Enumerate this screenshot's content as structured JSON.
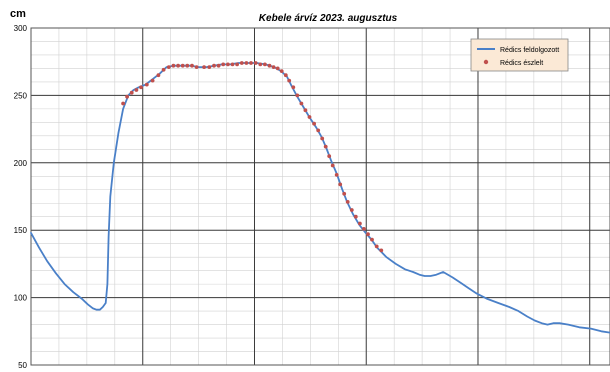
{
  "chart_data": {
    "type": "line",
    "title": "Kebele árvíz 2023. augusztus",
    "ylabel": "cm",
    "xlabel": "",
    "ylim": [
      50,
      300
    ],
    "yticks": [
      50,
      100,
      150,
      200,
      250,
      300
    ],
    "xlim": [
      0,
      100
    ],
    "x_major_ticks": [
      0,
      19.3,
      38.6,
      57.9,
      77.2,
      96.5
    ],
    "x_tick_labels": [
      "",
      "",
      "",
      "",
      "",
      ""
    ],
    "grid": true,
    "legend_position": "top-right",
    "series": [
      {
        "name": "Rédics feldolgozott",
        "kind": "line",
        "color": "#4a80c8",
        "points": [
          [
            0.0,
            148
          ],
          [
            1.4,
            137
          ],
          [
            2.8,
            127
          ],
          [
            4.3,
            118
          ],
          [
            5.8,
            110
          ],
          [
            7.3,
            104
          ],
          [
            8.8,
            99
          ],
          [
            9.8,
            95
          ],
          [
            10.7,
            92
          ],
          [
            11.3,
            91
          ],
          [
            11.9,
            91
          ],
          [
            12.4,
            93
          ],
          [
            12.9,
            96
          ],
          [
            13.2,
            110
          ],
          [
            13.4,
            145
          ],
          [
            13.7,
            175
          ],
          [
            14.3,
            200
          ],
          [
            15.1,
            222
          ],
          [
            15.9,
            240
          ],
          [
            16.8,
            250
          ],
          [
            17.7,
            254
          ],
          [
            18.6,
            256
          ],
          [
            19.8,
            258
          ],
          [
            21.0,
            262
          ],
          [
            22.2,
            266
          ],
          [
            23.4,
            271
          ],
          [
            24.6,
            272
          ],
          [
            26.3,
            272
          ],
          [
            27.7,
            272
          ],
          [
            29.0,
            271
          ],
          [
            30.3,
            271
          ],
          [
            31.6,
            272
          ],
          [
            33.0,
            273
          ],
          [
            34.4,
            273
          ],
          [
            35.8,
            274
          ],
          [
            37.5,
            274
          ],
          [
            39.0,
            274
          ],
          [
            40.5,
            273
          ],
          [
            42.0,
            271
          ],
          [
            43.2,
            268
          ],
          [
            44.2,
            264
          ],
          [
            45.0,
            257
          ],
          [
            46.0,
            249
          ],
          [
            47.1,
            241
          ],
          [
            48.2,
            233
          ],
          [
            49.3,
            226
          ],
          [
            50.2,
            219
          ],
          [
            51.0,
            211
          ],
          [
            51.8,
            202
          ],
          [
            52.8,
            192
          ],
          [
            53.7,
            181
          ],
          [
            54.6,
            171
          ],
          [
            55.6,
            162
          ],
          [
            56.7,
            154
          ],
          [
            57.8,
            148
          ],
          [
            58.8,
            143
          ],
          [
            59.8,
            137
          ],
          [
            61.4,
            130
          ],
          [
            63.0,
            125
          ],
          [
            64.6,
            121
          ],
          [
            66.0,
            119
          ],
          [
            67.1,
            117
          ],
          [
            68.0,
            116
          ],
          [
            69.0,
            116
          ],
          [
            70.0,
            117
          ],
          [
            71.2,
            119
          ],
          [
            72.8,
            115
          ],
          [
            74.2,
            111
          ],
          [
            75.6,
            107
          ],
          [
            77.0,
            103
          ],
          [
            78.8,
            99
          ],
          [
            80.7,
            96
          ],
          [
            82.6,
            93
          ],
          [
            84.2,
            90
          ],
          [
            85.7,
            86
          ],
          [
            87.0,
            83
          ],
          [
            88.2,
            81
          ],
          [
            89.2,
            80
          ],
          [
            90.2,
            81
          ],
          [
            91.3,
            81
          ],
          [
            92.8,
            80
          ],
          [
            94.7,
            78
          ],
          [
            96.7,
            77
          ],
          [
            98.5,
            75
          ],
          [
            100.0,
            74
          ]
        ]
      },
      {
        "name": "Rédics észlelt",
        "kind": "markers",
        "color": "#c0504d",
        "points": [
          [
            15.9,
            244
          ],
          [
            16.6,
            249
          ],
          [
            17.4,
            252
          ],
          [
            18.2,
            254
          ],
          [
            19.0,
            256
          ],
          [
            20.0,
            258
          ],
          [
            21.0,
            261
          ],
          [
            22.0,
            265
          ],
          [
            22.9,
            269
          ],
          [
            23.8,
            271
          ],
          [
            24.6,
            272
          ],
          [
            25.4,
            272
          ],
          [
            26.2,
            272
          ],
          [
            27.0,
            272
          ],
          [
            27.8,
            272
          ],
          [
            28.6,
            271
          ],
          [
            29.9,
            271
          ],
          [
            30.8,
            271
          ],
          [
            31.6,
            272
          ],
          [
            32.4,
            272
          ],
          [
            33.2,
            273
          ],
          [
            34.0,
            273
          ],
          [
            34.8,
            273
          ],
          [
            35.6,
            273
          ],
          [
            36.4,
            274
          ],
          [
            37.2,
            274
          ],
          [
            38.0,
            274
          ],
          [
            38.8,
            274
          ],
          [
            39.6,
            273
          ],
          [
            40.4,
            273
          ],
          [
            41.2,
            272
          ],
          [
            41.9,
            271
          ],
          [
            42.6,
            270
          ],
          [
            43.3,
            268
          ],
          [
            44.0,
            265
          ],
          [
            44.6,
            261
          ],
          [
            45.3,
            256
          ],
          [
            46.0,
            250
          ],
          [
            46.7,
            244
          ],
          [
            47.4,
            239
          ],
          [
            48.1,
            234
          ],
          [
            48.9,
            229
          ],
          [
            49.6,
            224
          ],
          [
            50.3,
            218
          ],
          [
            50.9,
            212
          ],
          [
            51.5,
            205
          ],
          [
            52.1,
            198
          ],
          [
            52.8,
            191
          ],
          [
            53.4,
            184
          ],
          [
            54.1,
            177
          ],
          [
            54.7,
            171
          ],
          [
            55.4,
            165
          ],
          [
            56.1,
            160
          ],
          [
            56.8,
            155
          ],
          [
            57.5,
            151
          ],
          [
            58.2,
            147
          ],
          [
            58.9,
            143
          ],
          [
            59.7,
            138
          ],
          [
            60.5,
            135
          ]
        ]
      }
    ]
  }
}
